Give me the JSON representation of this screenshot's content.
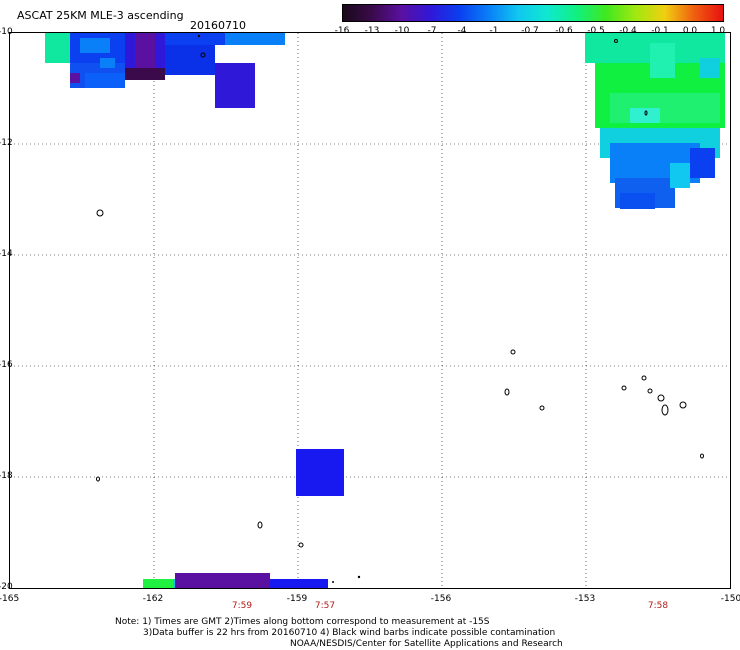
{
  "header": {
    "title": "ASCAT 25KM MLE-3 ascending",
    "date": "20160710"
  },
  "colorbar": {
    "labels": [
      "-16",
      "-13",
      "-10",
      "-7",
      "-4",
      "-1",
      "-0.7",
      "-0.6",
      "-0.5",
      "-0.4",
      "-0.1",
      "0.0",
      "1.0"
    ],
    "colors": [
      "#1a0a1a",
      "#3a0a4a",
      "#5a10a0",
      "#3018d8",
      "#0a40f0",
      "#0a80f8",
      "#10c8f0",
      "#10e8d0",
      "#10f080",
      "#40e820",
      "#a0e810",
      "#f0d010",
      "#f06010",
      "#e81010"
    ]
  },
  "axes": {
    "x_ticks": [
      "-165",
      "-162",
      "-159",
      "-156",
      "-153",
      "-150"
    ],
    "y_ticks": [
      "-10",
      "-12",
      "-14",
      "-16",
      "-18",
      "-20"
    ]
  },
  "times": [
    "7:59",
    "7:57",
    "7:58"
  ],
  "notes": {
    "line1": "Note: 1) Times are GMT 2)Times along bottom correspond to measurement at -15S",
    "line2": "3)Data buffer is 22 hrs from 20160710 4) Black wind barbs indicate possible contamination",
    "line3": "NOAA/NESDIS/Center for Satellite Applications and Research"
  }
}
